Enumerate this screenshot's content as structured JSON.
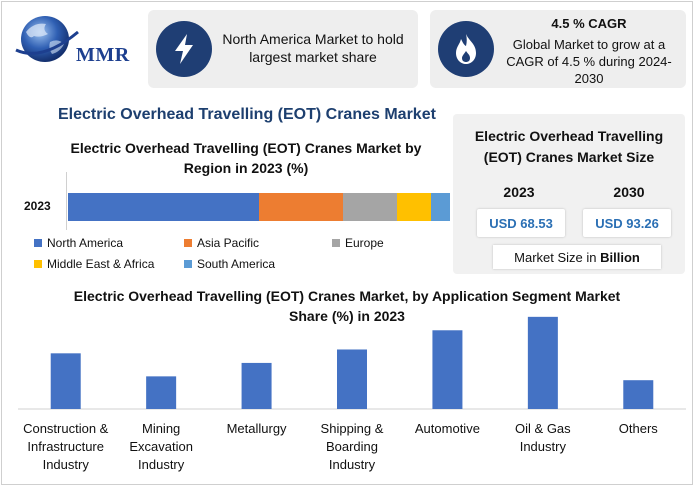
{
  "logo": {
    "text": "MMR"
  },
  "info": {
    "box1_text": "North America Market to hold largest market share",
    "box2_title": "4.5 % CAGR",
    "box2_text": "Global Market to grow at a CAGR of 4.5 % during 2024-2030"
  },
  "main_title": "Electric Overhead Travelling (EOT) Cranes Market",
  "size_panel": {
    "title": "Electric Overhead Travelling (EOT) Cranes Market Size",
    "year1": "2023",
    "year2": "2030",
    "value1": "USD 68.53",
    "value2": "USD 93.26",
    "unit_prefix": "Market Size in ",
    "unit_bold": "Billion"
  },
  "chart_data": [
    {
      "type": "bar",
      "orientation": "horizontal-stacked",
      "title": "Electric Overhead Travelling (EOT) Cranes Market by Region in 2023 (%)",
      "categories": [
        "2023"
      ],
      "series": [
        {
          "name": "North America",
          "values": [
            50
          ],
          "color": "#4472c4"
        },
        {
          "name": "Asia Pacific",
          "values": [
            22
          ],
          "color": "#ed7d31"
        },
        {
          "name": "Europe",
          "values": [
            14
          ],
          "color": "#a5a5a5"
        },
        {
          "name": "Middle East & Africa",
          "values": [
            9
          ],
          "color": "#ffc000"
        },
        {
          "name": "South America",
          "values": [
            5
          ],
          "color": "#5b9bd5"
        }
      ],
      "legend": "bottom"
    },
    {
      "type": "bar",
      "title": "Electric Overhead Travelling (EOT) Cranes Market, by Application Segment Market Share (%) in 2023",
      "categories": [
        "Construction & Infrastructure Industry",
        "Mining Excavation Industry",
        "Metallurgy",
        "Shipping & Boarding Industry",
        "Automotive",
        "Oil & Gas Industry",
        "Others"
      ],
      "values": [
        14.5,
        8.5,
        12,
        15.5,
        20.5,
        24,
        7.5
      ],
      "ylim": [
        0,
        25
      ],
      "color": "#4472c4"
    }
  ]
}
